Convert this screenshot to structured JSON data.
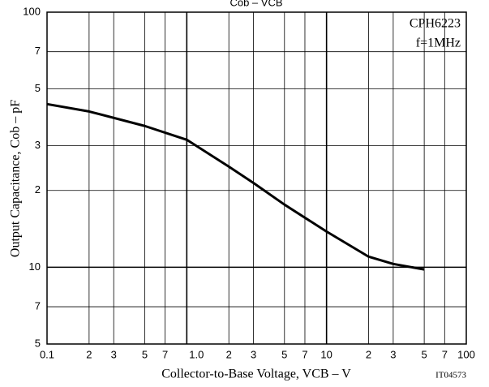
{
  "chart_data": {
    "type": "line",
    "title": "Cob – VCB",
    "xlabel": "Collector-to-Base Voltage, VCB – V",
    "ylabel": "Output Capacitance, Cob – pF",
    "annotations": [
      "CPH6223",
      "f=1MHz",
      "IT04573"
    ],
    "xscale": "log",
    "yscale": "log",
    "grid": true,
    "xlim": [
      0.1,
      100
    ],
    "ylim": [
      5,
      100
    ],
    "xticks": [
      0.1,
      {
        "value": 0.2,
        "label": "2"
      },
      {
        "value": 0.3,
        "label": "3"
      },
      {
        "value": 0.5,
        "label": "5"
      },
      {
        "value": 0.7,
        "label": "7"
      },
      {
        "value": 1,
        "label": "1.0"
      },
      2,
      3,
      5,
      7,
      10,
      {
        "value": 20,
        "label": "2"
      },
      {
        "value": 30,
        "label": "3"
      },
      {
        "value": 50,
        "label": "5"
      },
      {
        "value": 70,
        "label": "7"
      },
      100
    ],
    "yticks": [
      5,
      7,
      10,
      {
        "value": 20,
        "label": "2"
      },
      {
        "value": 30,
        "label": "3"
      },
      {
        "value": 50,
        "label": "5"
      },
      {
        "value": 70,
        "label": "7"
      },
      100
    ],
    "x": [
      0.1,
      0.2,
      0.5,
      1,
      2,
      3,
      5,
      10,
      20,
      30,
      50
    ],
    "series": [
      {
        "name": "Cob",
        "color": "#000000",
        "values": [
          43.6,
          40.8,
          35.8,
          31.6,
          24.8,
          21.4,
          17.6,
          13.8,
          11.0,
          10.3,
          9.8
        ]
      }
    ]
  }
}
